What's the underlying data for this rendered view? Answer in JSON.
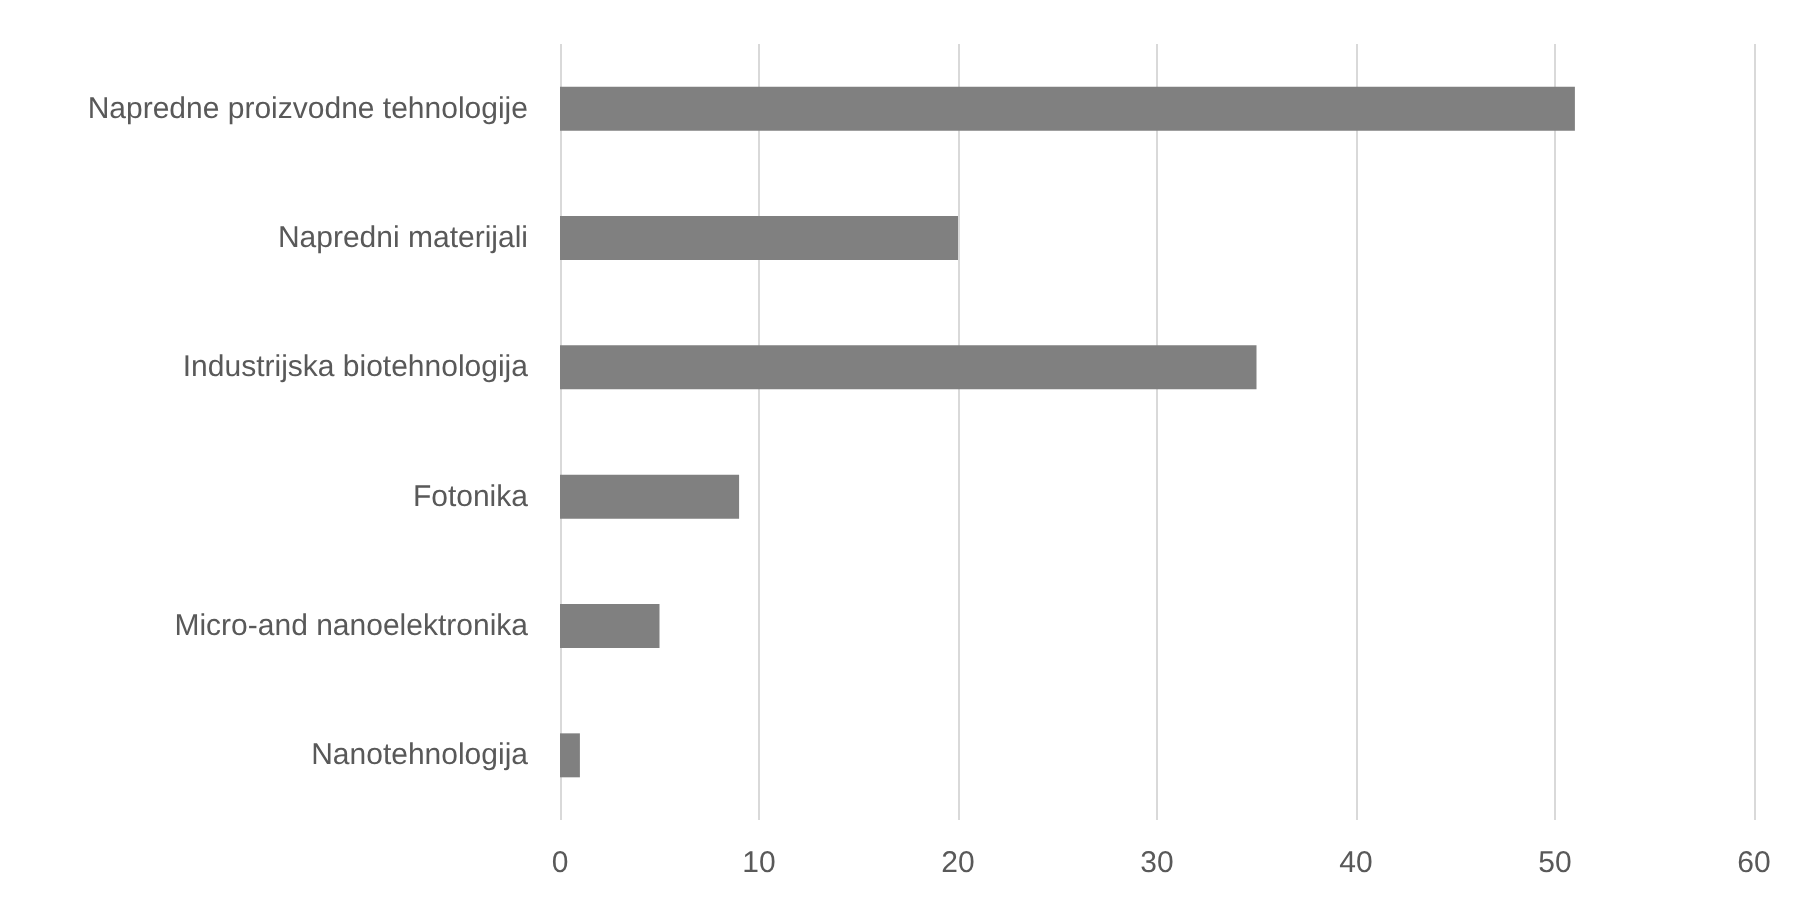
{
  "chart_data": {
    "type": "bar",
    "orientation": "horizontal",
    "categories": [
      "Napredne proizvodne tehnologije",
      "Napredni materijali",
      "Industrijska biotehnologija",
      "Fotonika",
      "Micro-and nanoelektronika",
      "Nanotehnologija"
    ],
    "values": [
      51,
      20,
      35,
      9,
      5,
      1
    ],
    "color": "#808080",
    "xlim": [
      0,
      60
    ],
    "xticks": [
      0,
      10,
      20,
      30,
      40,
      50,
      60
    ],
    "grid": "x"
  }
}
